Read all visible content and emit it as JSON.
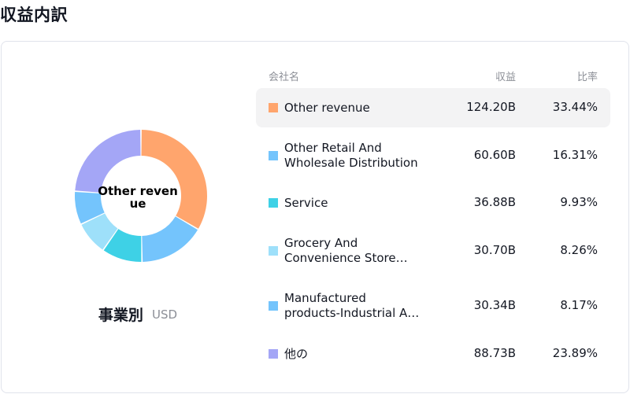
{
  "page": {
    "title": "収益内訳"
  },
  "chart_caption": {
    "main": "事業別",
    "currency": "USD"
  },
  "center_label": "Other revenue",
  "table": {
    "headers": {
      "company": "会社名",
      "revenue": "収益",
      "ratio": "比率"
    },
    "rows": [
      {
        "name_lines": [
          "Other revenue"
        ],
        "revenue": "124.20B",
        "ratio": "33.44%",
        "color": "#ffa56d",
        "highlight": true
      },
      {
        "name_lines": [
          "Other Retail And",
          "Wholesale Distribution"
        ],
        "revenue": "60.60B",
        "ratio": "16.31%",
        "color": "#74c4fc",
        "highlight": false
      },
      {
        "name_lines": [
          "Service"
        ],
        "revenue": "36.88B",
        "ratio": "9.93%",
        "color": "#3ed1e6",
        "highlight": false
      },
      {
        "name_lines": [
          "Grocery And",
          "Convenience Store…"
        ],
        "revenue": "30.70B",
        "ratio": "8.26%",
        "color": "#9ee0fa",
        "highlight": false
      },
      {
        "name_lines": [
          "Manufactured",
          "products-Industrial A…"
        ],
        "revenue": "30.34B",
        "ratio": "8.17%",
        "color": "#74c4fc",
        "highlight": false
      },
      {
        "name_lines": [
          "他の"
        ],
        "revenue": "88.73B",
        "ratio": "23.89%",
        "color": "#a4a6f6",
        "highlight": false
      }
    ]
  },
  "chart_data": {
    "type": "pie",
    "categories": [
      "Other revenue",
      "Other Retail And Wholesale Distribution",
      "Service",
      "Grocery And Convenience Store…",
      "Manufactured products-Industrial A…",
      "他の"
    ],
    "values": [
      124.2,
      60.6,
      36.88,
      30.7,
      30.34,
      88.73
    ],
    "percent": [
      33.44,
      16.31,
      9.93,
      8.26,
      8.17,
      23.89
    ],
    "colors": [
      "#ffa56d",
      "#74c4fc",
      "#3ed1e6",
      "#9ee0fa",
      "#74c4fc",
      "#a4a6f6"
    ],
    "donut": true,
    "title": "事業別",
    "unit": "USD"
  }
}
